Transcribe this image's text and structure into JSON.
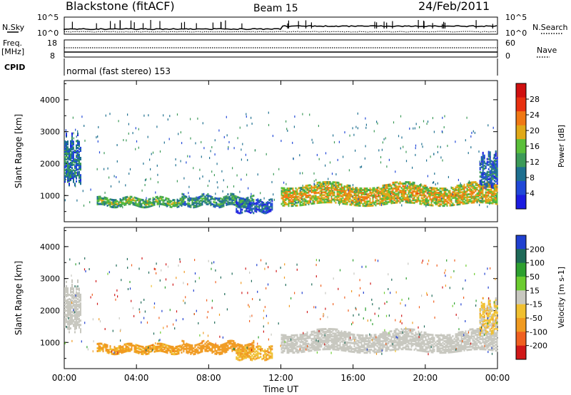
{
  "header": {
    "station": "Blackstone (fitACF)",
    "beam": "Beam 15",
    "date": "24/Feb/2011"
  },
  "status_panel": {
    "nsky_label": "N.Sky",
    "nsearch_label": "N.Search",
    "freq_label": "Freq.",
    "freq_unit": "[MHz]",
    "cpid_label": "CPID",
    "nave_label": "Nave",
    "noise_ticks": [
      "10^5",
      "10^0"
    ],
    "noise_ticks_right": [
      "10^5",
      "10^0"
    ],
    "freq_ticks": [
      "18",
      "8"
    ],
    "nave_ticks": [
      "60",
      "0"
    ],
    "cpid_text": "normal (fast stereo) 153"
  },
  "colors": {
    "power_scale": [
      "#1c1ce0",
      "#2048d8",
      "#1e7090",
      "#3c9a58",
      "#5abf3a",
      "#e0a818",
      "#f07814",
      "#e83010",
      "#d01010"
    ],
    "velocity_scale": [
      "#2040d0",
      "#1e6a58",
      "#2ea030",
      "#6ccc30",
      "#c8c8c0",
      "#f0c030",
      "#f09a20",
      "#f06020",
      "#d01818"
    ]
  },
  "chart_data": [
    {
      "type": "heatmap",
      "name": "power",
      "xlabel": "Time UT",
      "ylabel": "Slant Range [km]",
      "xlim": [
        0,
        24
      ],
      "ylim": [
        180,
        4600
      ],
      "x_tick_labels": [
        "00:00",
        "04:00",
        "08:00",
        "12:00",
        "16:00",
        "20:00",
        "00:00"
      ],
      "y_ticks": [
        1000,
        2000,
        3000,
        4000
      ],
      "colorbar": {
        "label": "Power [dB]",
        "range": [
          0,
          30
        ],
        "tick_labels": [
          "28",
          "24",
          "20",
          "16",
          "12",
          "8",
          "4"
        ]
      },
      "scatter_bands": [
        {
          "t_start": 0.0,
          "t_end": 0.9,
          "range_low": 1400,
          "range_high": 2700,
          "level": 9
        },
        {
          "t_start": 1.8,
          "t_end": 6.5,
          "range_low": 650,
          "range_high": 900,
          "level": 15
        },
        {
          "t_start": 6.5,
          "t_end": 10.5,
          "range_low": 650,
          "range_high": 950,
          "level": 12
        },
        {
          "t_start": 9.5,
          "t_end": 11.5,
          "range_low": 450,
          "range_high": 800,
          "level": 7
        },
        {
          "t_start": 12.0,
          "t_end": 24.0,
          "range_low": 700,
          "range_high": 1300,
          "level": 20
        },
        {
          "t_start": 23.0,
          "t_end": 24.0,
          "range_low": 1300,
          "range_high": 2200,
          "level": 8
        }
      ]
    },
    {
      "type": "heatmap",
      "name": "velocity",
      "xlabel": "Time UT",
      "ylabel": "Slant Range [km]",
      "xlim": [
        0,
        24
      ],
      "ylim": [
        180,
        4600
      ],
      "x_tick_labels": [
        "00:00",
        "04:00",
        "08:00",
        "12:00",
        "16:00",
        "20:00",
        "00:00"
      ],
      "y_ticks": [
        1000,
        2000,
        3000,
        4000
      ],
      "colorbar": {
        "label": "Velocity [m s-1]",
        "range": [
          -250,
          250
        ],
        "tick_labels": [
          "200",
          "100",
          "50",
          "15",
          "-15",
          "-50",
          "-100",
          "-200"
        ]
      },
      "scatter_bands": [
        {
          "t_start": 0.0,
          "t_end": 0.9,
          "range_low": 1400,
          "range_high": 2700,
          "velocity": 0
        },
        {
          "t_start": 1.8,
          "t_end": 6.5,
          "range_low": 650,
          "range_high": 900,
          "velocity": -40
        },
        {
          "t_start": 6.5,
          "t_end": 10.5,
          "range_low": 650,
          "range_high": 950,
          "velocity": -60
        },
        {
          "t_start": 9.5,
          "t_end": 11.5,
          "range_low": 450,
          "range_high": 800,
          "velocity": -30
        },
        {
          "t_start": 12.0,
          "t_end": 24.0,
          "range_low": 700,
          "range_high": 1300,
          "velocity": 0
        },
        {
          "t_start": 23.0,
          "t_end": 24.0,
          "range_low": 1300,
          "range_high": 2200,
          "velocity": -20
        }
      ]
    }
  ]
}
